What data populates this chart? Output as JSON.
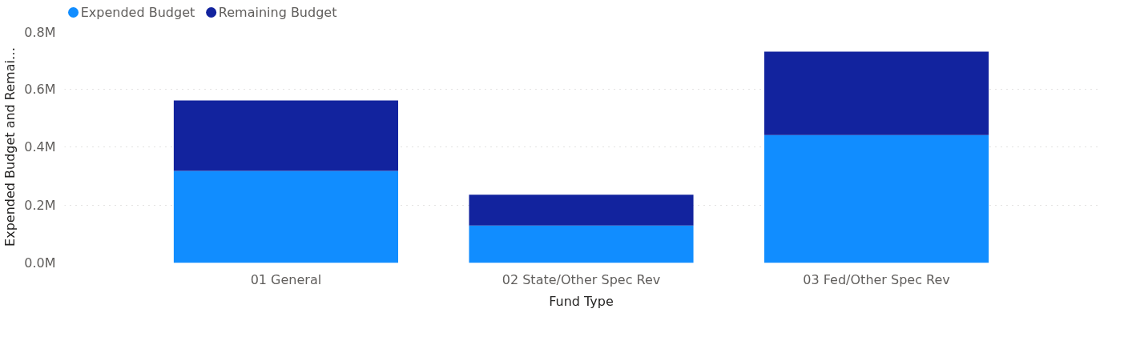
{
  "chart_data": {
    "type": "bar",
    "stacked": true,
    "xlabel": "Fund Type",
    "ylabel": "Expended Budget and Remai…",
    "categories": [
      "01 General",
      "02 State/Other Spec Rev",
      "03 Fed/Other Spec Rev"
    ],
    "series": [
      {
        "name": "Expended Budget",
        "color": "#118dff",
        "values": [
          317000,
          129000,
          441000
        ]
      },
      {
        "name": "Remaining Budget",
        "color": "#12239e",
        "values": [
          243000,
          106000,
          287000
        ]
      }
    ],
    "ylim": [
      0,
      800000
    ],
    "yticks": [
      {
        "value": 0,
        "label": "0.0M"
      },
      {
        "value": 200000,
        "label": "0.2M"
      },
      {
        "value": 400000,
        "label": "0.4M"
      },
      {
        "value": 600000,
        "label": "0.6M"
      },
      {
        "value": 800000,
        "label": "0.8M"
      }
    ],
    "grid": "y",
    "legend": "top left"
  }
}
